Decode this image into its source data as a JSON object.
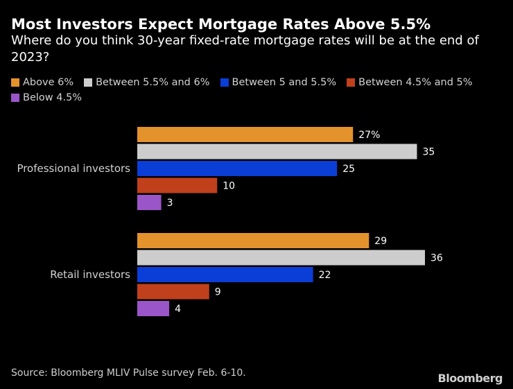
{
  "chart_data": {
    "type": "bar",
    "orientation": "horizontal",
    "title": "Most Investors Expect Mortgage Rates Above 5.5%",
    "subtitle": "Where do you think 30-year fixed-rate mortgage rates will be at the end of 2023?",
    "categories": [
      "Professional investors",
      "Retail investors"
    ],
    "series": [
      {
        "name": "Above 6%",
        "color": "#e4922c",
        "values": [
          27,
          29
        ],
        "labels": [
          "27%",
          "29"
        ]
      },
      {
        "name": "Between 5.5% and 6%",
        "color": "#cdcdcd",
        "values": [
          35,
          36
        ],
        "labels": [
          "35",
          "36"
        ]
      },
      {
        "name": "Between 5 and 5.5%",
        "color": "#0a3ed6",
        "values": [
          25,
          22
        ],
        "labels": [
          "25",
          "22"
        ]
      },
      {
        "name": "Between 4.5% and 5%",
        "color": "#c0401c",
        "values": [
          10,
          9
        ],
        "labels": [
          "10",
          "9"
        ]
      },
      {
        "name": "Below 4.5%",
        "color": "#9a55c8",
        "values": [
          3,
          4
        ],
        "labels": [
          "3",
          "4"
        ]
      }
    ],
    "xlim": [
      0,
      36
    ],
    "grid": false,
    "legend_position": "top-left"
  },
  "footer": {
    "source": "Source: Bloomberg MLIV Pulse survey Feb. 6-10.",
    "brand": "Bloomberg"
  }
}
